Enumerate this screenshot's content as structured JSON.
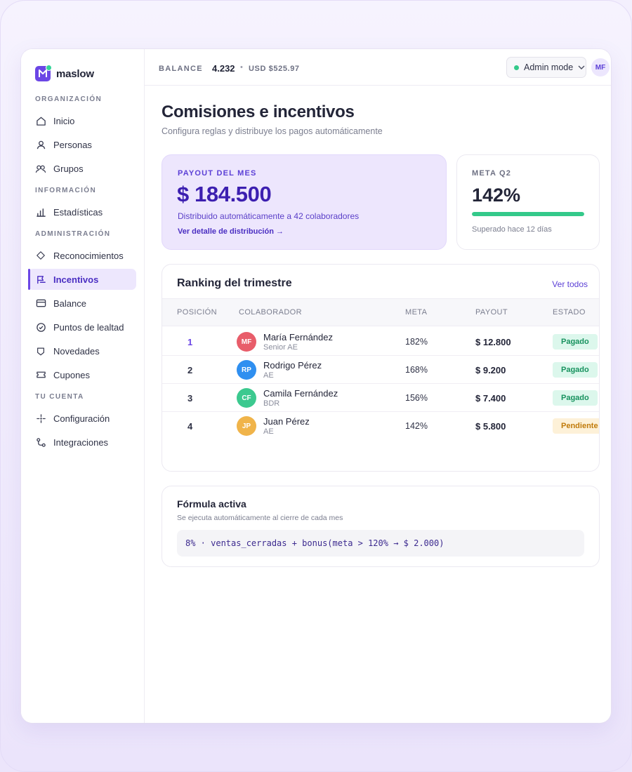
{
  "app": {
    "name": "maslow"
  },
  "sidebar": {
    "sections": [
      {
        "label": "ORGANIZACIÓN"
      },
      {
        "label": "INFORMACIÓN"
      },
      {
        "label": "ADMINISTRACIÓN"
      },
      {
        "label": "TU CUENTA"
      }
    ],
    "items": [
      {
        "label": "Inicio",
        "icon": "home-icon"
      },
      {
        "label": "Personas",
        "icon": "user-icon"
      },
      {
        "label": "Grupos",
        "icon": "users-icon"
      },
      {
        "label": "Estadísticas",
        "icon": "bar-chart-icon"
      },
      {
        "label": "Reconocimientos",
        "icon": "diamond-icon"
      },
      {
        "label": "Incentivos",
        "icon": "flag-icon",
        "active": true
      },
      {
        "label": "Balance",
        "icon": "card-icon"
      },
      {
        "label": "Puntos de lealtad",
        "icon": "check-circle-icon"
      },
      {
        "label": "Novedades",
        "icon": "shield-icon"
      },
      {
        "label": "Cupones",
        "icon": "ticket-icon"
      },
      {
        "label": "Configuración",
        "icon": "sparkle-icon"
      },
      {
        "label": "Integraciones",
        "icon": "integration-icon"
      }
    ]
  },
  "topbar": {
    "balance_label": "BALANCE",
    "balance_value": "4.232",
    "separator": "•",
    "balance_usd": "USD $525.97",
    "mode_label": "Admin mode",
    "user_initials": "MF"
  },
  "page": {
    "title": "Comisiones e incentivos",
    "subtitle": "Configura reglas y distribuye los pagos automáticamente"
  },
  "payout": {
    "label": "PAYOUT DEL MES",
    "value": "$ 184.500",
    "description": "Distribuido automáticamente a 42 colaboradores",
    "link": "Ver detalle de distribución →"
  },
  "meta": {
    "label": "META Q2",
    "value": "142%",
    "progress": 1.0,
    "note": "Superado hace 12 días"
  },
  "ranking": {
    "title": "Ranking del trimestre",
    "link": "Ver todos",
    "columns": [
      "POSICIÓN",
      "COLABORADOR",
      "META",
      "PAYOUT",
      "ESTADO"
    ],
    "rows": [
      {
        "position": "1",
        "initials": "MF",
        "avatar_color": "#e85d6a",
        "name": "María Fernández",
        "role": "Senior AE",
        "meta": "182%",
        "payout": "$ 12.800",
        "status": "Pagado",
        "status_type": "paid"
      },
      {
        "position": "2",
        "initials": "RP",
        "avatar_color": "#2f8ff0",
        "name": "Rodrigo Pérez",
        "role": "AE",
        "meta": "168%",
        "payout": "$ 9.200",
        "status": "Pagado",
        "status_type": "paid"
      },
      {
        "position": "3",
        "initials": "CF",
        "avatar_color": "#3cc98f",
        "name": "Camila Fernández",
        "role": "BDR",
        "meta": "156%",
        "payout": "$ 7.400",
        "status": "Pagado",
        "status_type": "paid"
      },
      {
        "position": "4",
        "initials": "JP",
        "avatar_color": "#f0b44a",
        "name": "Juan Pérez",
        "role": "AE",
        "meta": "142%",
        "payout": "$ 5.800",
        "status": "Pendiente",
        "status_type": "pending"
      }
    ]
  },
  "formula": {
    "title": "Fórmula activa",
    "subtitle": "Se ejecuta automáticamente al cierre de cada mes",
    "code": "8% · ventas_cerradas + bonus(meta > 120% → $ 2.000)"
  },
  "colors": {
    "accent": "#6b46e5",
    "success": "#34c98a",
    "pending": "#c07a0a"
  }
}
